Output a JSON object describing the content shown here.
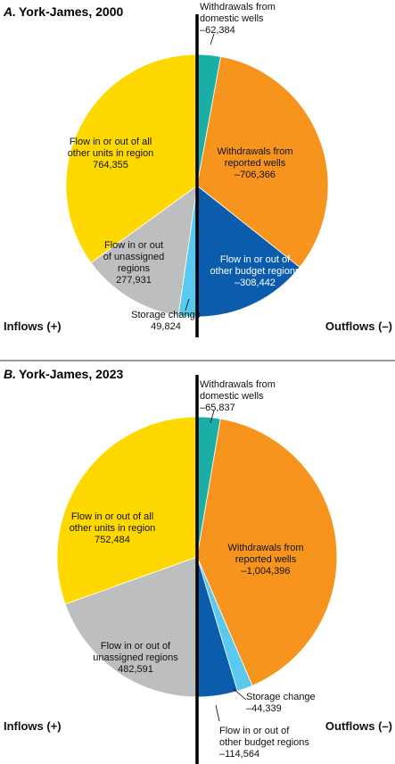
{
  "chart_data": [
    {
      "type": "pie",
      "title_letter": "A.",
      "title": "York-James, 2000",
      "inflow_label": "Inflows (+)",
      "outflow_label": "Outflows (–)",
      "slices": [
        {
          "side": "out",
          "lines": [
            "Withdrawals from",
            "domestic wells",
            "–62,384"
          ],
          "value": 62384,
          "color": "#1aaea6"
        },
        {
          "side": "out",
          "lines": [
            "Withdrawals from",
            "reported wells",
            "–706,366"
          ],
          "value": 706366,
          "color": "#f7941d"
        },
        {
          "side": "out",
          "lines": [
            "Flow in or out of",
            "other budget regions",
            "–308,442"
          ],
          "value": 308442,
          "color": "#0b5cad"
        },
        {
          "side": "in",
          "lines": [
            "Storage change",
            "49,824"
          ],
          "value": 49824,
          "color": "#5bc8f0"
        },
        {
          "side": "in",
          "lines": [
            "Flow in or out",
            "of unassigned",
            "regions",
            "277,931"
          ],
          "value": 277931,
          "color": "#bcbec0"
        },
        {
          "side": "in",
          "lines": [
            "Flow in or out of all",
            "other units in region",
            "764,355"
          ],
          "value": 764355,
          "color": "#ffd800"
        }
      ]
    },
    {
      "type": "pie",
      "title_letter": "B.",
      "title": "York-James, 2023",
      "inflow_label": "Inflows (+)",
      "outflow_label": "Outflows (–)",
      "slices": [
        {
          "side": "out",
          "lines": [
            "Withdrawals from",
            "domestic wells",
            "–65,837"
          ],
          "value": 65837,
          "color": "#1aaea6"
        },
        {
          "side": "out",
          "lines": [
            "Withdrawals from",
            "reported wells",
            "–1,004,396"
          ],
          "value": 1004396,
          "color": "#f7941d"
        },
        {
          "side": "out",
          "lines": [
            "Storage change",
            "–44,339"
          ],
          "value": 44339,
          "color": "#5bc8f0"
        },
        {
          "side": "out",
          "lines": [
            "Flow in or out of",
            "other budget regions",
            "–114,564"
          ],
          "value": 114564,
          "color": "#0b5cad"
        },
        {
          "side": "in",
          "lines": [
            "Flow in or out of",
            "unassigned regions",
            "482,591"
          ],
          "value": 482591,
          "color": "#bcbec0"
        },
        {
          "side": "in",
          "lines": [
            "Flow in or out of all",
            "other units in region",
            "752,484"
          ],
          "value": 752484,
          "color": "#ffd800"
        }
      ]
    }
  ]
}
